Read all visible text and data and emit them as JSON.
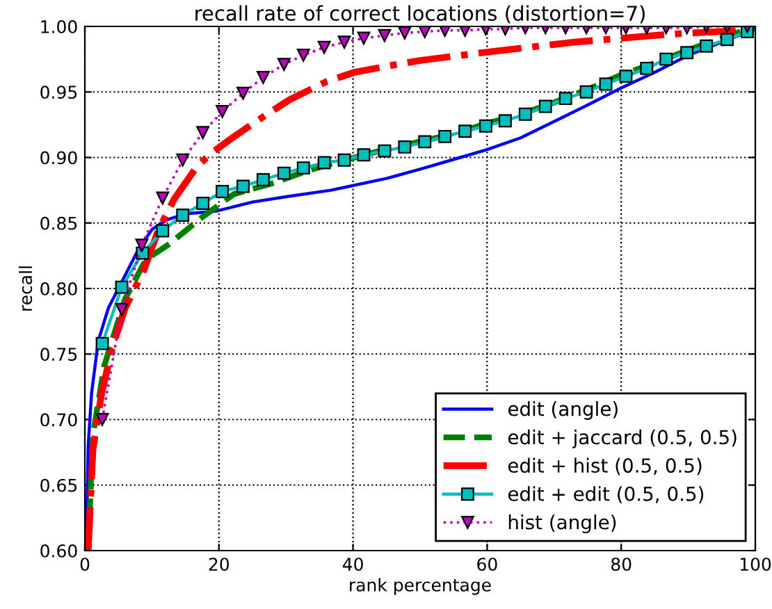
{
  "chart_data": {
    "type": "line",
    "title": "recall rate of correct locations (distortion=7)",
    "xlabel": "rank percentage",
    "ylabel": "recall",
    "xlim": [
      0,
      100
    ],
    "ylim": [
      0.6,
      1.0
    ],
    "xticks": [
      0,
      20,
      40,
      60,
      80,
      100
    ],
    "yticks": [
      {
        "value": 0.6,
        "label": "0.60"
      },
      {
        "value": 0.65,
        "label": "0.65"
      },
      {
        "value": 0.7,
        "label": "0.70"
      },
      {
        "value": 0.75,
        "label": "0.75"
      },
      {
        "value": 0.8,
        "label": "0.80"
      },
      {
        "value": 0.85,
        "label": "0.85"
      },
      {
        "value": 0.9,
        "label": "0.90"
      },
      {
        "value": 0.95,
        "label": "0.95"
      },
      {
        "value": 1.0,
        "label": "1.00"
      }
    ],
    "grid": true,
    "legend": "bottom right",
    "series": [
      {
        "name": "edit (angle)",
        "color": "#0000ff",
        "line_style": "solid",
        "marker": "none",
        "x": [
          0.2,
          0.5,
          1,
          2,
          3.5,
          5.5,
          8,
          10,
          12,
          15,
          19.5,
          25,
          30,
          36.7,
          45,
          50,
          56,
          60,
          65,
          71,
          75,
          80,
          85,
          90,
          95,
          100
        ],
        "values": [
          0.6,
          0.68,
          0.72,
          0.76,
          0.785,
          0.805,
          0.83,
          0.845,
          0.852,
          0.857,
          0.859,
          0.866,
          0.87,
          0.875,
          0.884,
          0.891,
          0.9,
          0.906,
          0.915,
          0.93,
          0.94,
          0.953,
          0.965,
          0.978,
          0.988,
          0.998
        ]
      },
      {
        "name": "edit + jaccard (0.5, 0.5)",
        "color": "#008000",
        "line_style": "dashed",
        "marker": "none",
        "x": [
          0.5,
          1.2,
          2.9,
          6,
          9.1,
          12.6,
          17.4,
          22.2,
          27.8,
          33.3,
          38.8,
          44,
          49.9,
          55,
          60,
          65,
          70,
          75,
          80,
          85,
          90,
          95,
          100
        ],
        "values": [
          0.6,
          0.688,
          0.741,
          0.792,
          0.822,
          0.834,
          0.854,
          0.872,
          0.88,
          0.89,
          0.898,
          0.905,
          0.912,
          0.918,
          0.926,
          0.933,
          0.942,
          0.952,
          0.963,
          0.972,
          0.982,
          0.991,
          1.0
        ]
      },
      {
        "name": "edit + hist (0.5, 0.5)",
        "color": "#ff0000",
        "line_style": "dashdot",
        "marker": "none",
        "x": [
          0.5,
          1.2,
          2.5,
          4.1,
          6,
          8.8,
          11,
          13.3,
          16.7,
          18.8,
          22,
          25.7,
          30.5,
          36.1,
          40.2,
          45.4,
          50,
          59.3,
          73,
          87,
          98
        ],
        "values": [
          0.6,
          0.677,
          0.72,
          0.755,
          0.785,
          0.814,
          0.845,
          0.868,
          0.893,
          0.903,
          0.915,
          0.928,
          0.944,
          0.958,
          0.965,
          0.97,
          0.974,
          0.98,
          0.988,
          0.994,
          0.997
        ]
      },
      {
        "name": "edit + edit (0.5, 0.5)",
        "color": "#00bfbf",
        "line_style": "solid",
        "marker": "square",
        "x": [
          2.6,
          5.5,
          8.6,
          11.6,
          14.6,
          17.6,
          20.5,
          23.6,
          26.6,
          29.7,
          32.6,
          35.7,
          38.7,
          41.6,
          44.7,
          47.7,
          50.7,
          53.7,
          56.7,
          59.8,
          62.7,
          65.7,
          68.7,
          71.7,
          74.8,
          77.7,
          80.7,
          83.8,
          86.7,
          89.8,
          92.7,
          95.8,
          98.8
        ],
        "values": [
          0.758,
          0.801,
          0.827,
          0.844,
          0.856,
          0.865,
          0.874,
          0.878,
          0.883,
          0.888,
          0.892,
          0.896,
          0.898,
          0.902,
          0.905,
          0.908,
          0.912,
          0.916,
          0.92,
          0.924,
          0.928,
          0.933,
          0.939,
          0.945,
          0.95,
          0.956,
          0.962,
          0.968,
          0.975,
          0.98,
          0.985,
          0.99,
          0.996
        ]
      },
      {
        "name": "hist (angle)",
        "color": "#bf00bf",
        "line_style": "dotted",
        "marker": "triangle",
        "x": [
          2.6,
          5.5,
          8.5,
          11.6,
          14.6,
          17.6,
          20.5,
          23.6,
          26.6,
          29.7,
          32.6,
          35.7,
          38.7,
          41.6,
          44.7,
          47.7,
          50.7,
          53.7,
          56.7,
          59.8,
          62.7,
          65.7,
          68.7,
          71.7,
          74.8,
          77.7,
          80.7,
          83.8,
          86.7,
          89.8,
          92.7,
          95.8,
          98.8
        ],
        "values": [
          0.7,
          0.784,
          0.833,
          0.869,
          0.898,
          0.919,
          0.935,
          0.949,
          0.961,
          0.971,
          0.978,
          0.984,
          0.988,
          0.991,
          0.993,
          0.995,
          0.996,
          0.997,
          0.997,
          0.998,
          0.998,
          0.999,
          0.999,
          0.999,
          0.999,
          0.999,
          0.999,
          0.999,
          0.999,
          0.999,
          1.0,
          1.0,
          1.0
        ]
      }
    ]
  }
}
